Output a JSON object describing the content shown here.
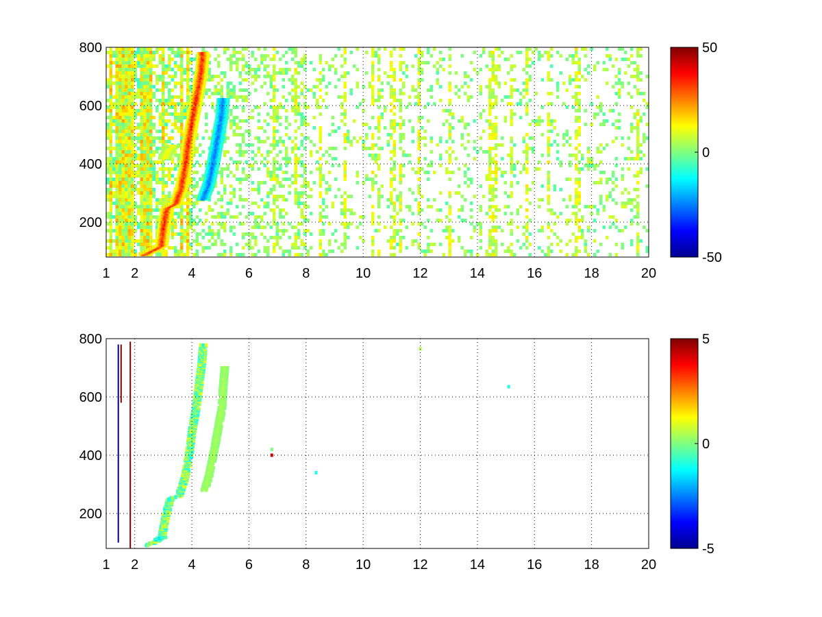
{
  "chart_data": [
    {
      "type": "heatmap",
      "title": "",
      "xlabel": "",
      "ylabel": "",
      "xlim": [
        1,
        20
      ],
      "ylim": [
        80,
        800
      ],
      "xticks": [
        "1",
        "2",
        "4",
        "6",
        "8",
        "10",
        "12",
        "14",
        "16",
        "18",
        "20"
      ],
      "xtick_values": [
        1,
        2,
        4,
        6,
        8,
        10,
        12,
        14,
        16,
        18,
        20
      ],
      "yticks": [
        "200",
        "400",
        "600",
        "800"
      ],
      "ytick_values": [
        200,
        400,
        600,
        800
      ],
      "grid": true,
      "colormap": "jet",
      "colorbar": {
        "range": [
          -50,
          50
        ],
        "ticks": [
          "50",
          "0",
          "-50"
        ],
        "tick_values": [
          50,
          0,
          -50
        ]
      },
      "features": [
        {
          "kind": "ridge",
          "sign": "positive",
          "peak": 40,
          "points": [
            [
              2.3,
              90
            ],
            [
              2.6,
              105
            ],
            [
              2.9,
              120
            ],
            [
              3.0,
              200
            ],
            [
              3.1,
              250
            ],
            [
              3.4,
              265
            ],
            [
              3.6,
              320
            ],
            [
              3.75,
              400
            ],
            [
              3.85,
              480
            ],
            [
              4.0,
              560
            ],
            [
              4.15,
              640
            ],
            [
              4.3,
              720
            ],
            [
              4.35,
              780
            ]
          ]
        },
        {
          "kind": "ridge",
          "sign": "negative",
          "peak": -30,
          "points": [
            [
              4.35,
              280
            ],
            [
              4.55,
              330
            ],
            [
              4.7,
              400
            ],
            [
              4.85,
              480
            ],
            [
              5.0,
              560
            ],
            [
              5.05,
              620
            ]
          ]
        },
        {
          "kind": "ridge",
          "sign": "positive",
          "peak": 15,
          "points": [
            [
              3.0,
              420
            ],
            [
              3.15,
              450
            ],
            [
              3.3,
              460
            ]
          ]
        }
      ],
      "vertical_streaks_x": [
        1.15,
        1.2,
        1.35,
        1.45,
        1.6,
        1.75,
        1.85,
        1.95,
        2.2,
        2.4,
        2.6,
        3.0,
        3.6,
        3.9,
        6.85,
        7.6,
        8.5,
        9.4,
        10.35,
        10.6,
        10.95,
        11.1,
        11.35,
        12.0,
        13.0,
        14.5,
        14.6,
        15.2,
        15.75,
        16.5,
        17.45,
        17.55,
        19.6
      ]
    },
    {
      "type": "heatmap",
      "title": "",
      "xlabel": "",
      "ylabel": "",
      "xlim": [
        1,
        20
      ],
      "ylim": [
        80,
        800
      ],
      "xticks": [
        "1",
        "2",
        "4",
        "6",
        "8",
        "10",
        "12",
        "14",
        "16",
        "18",
        "20"
      ],
      "xtick_values": [
        1,
        2,
        4,
        6,
        8,
        10,
        12,
        14,
        16,
        18,
        20
      ],
      "yticks": [
        "200",
        "400",
        "600",
        "800"
      ],
      "ytick_values": [
        200,
        400,
        600,
        800
      ],
      "grid": true,
      "colormap": "jet",
      "colorbar": {
        "range": [
          -5,
          5
        ],
        "ticks": [
          "5",
          "0",
          "-5"
        ],
        "tick_values": [
          5,
          0,
          -5
        ]
      },
      "features": [
        {
          "kind": "ridge",
          "sign": "mixed",
          "peak": 1,
          "points": [
            [
              2.4,
              90
            ],
            [
              2.7,
              105
            ],
            [
              2.9,
              120
            ],
            [
              3.05,
              200
            ],
            [
              3.2,
              250
            ],
            [
              3.5,
              260
            ],
            [
              3.7,
              320
            ],
            [
              3.85,
              400
            ],
            [
              3.95,
              480
            ],
            [
              4.1,
              560
            ],
            [
              4.2,
              640
            ],
            [
              4.3,
              720
            ],
            [
              4.35,
              780
            ]
          ]
        },
        {
          "kind": "ridge",
          "sign": "positive",
          "peak": 0.5,
          "points": [
            [
              4.4,
              280
            ],
            [
              4.55,
              330
            ],
            [
              4.7,
              400
            ],
            [
              4.85,
              480
            ],
            [
              5.0,
              560
            ],
            [
              5.05,
              640
            ],
            [
              5.1,
              700
            ]
          ]
        },
        {
          "kind": "ridge",
          "sign": "negative",
          "peak": -1.5,
          "points": [
            [
              2.7,
              110
            ],
            [
              2.85,
              115
            ],
            [
              3.0,
              120
            ]
          ]
        }
      ],
      "vertical_streaks": [
        {
          "x": 1.4,
          "y_range": [
            100,
            780
          ],
          "value": -5
        },
        {
          "x": 1.5,
          "y_range": [
            580,
            780
          ],
          "value": 5
        },
        {
          "x": 1.82,
          "y_range": [
            80,
            790
          ],
          "value": 5
        }
      ],
      "points": [
        {
          "x": 6.8,
          "y": 420,
          "value": 0
        },
        {
          "x": 6.8,
          "y": 400,
          "value": 4
        },
        {
          "x": 8.35,
          "y": 340,
          "value": -1
        },
        {
          "x": 12.0,
          "y": 765,
          "value": 0.5
        },
        {
          "x": 15.1,
          "y": 635,
          "value": -1
        }
      ]
    }
  ]
}
